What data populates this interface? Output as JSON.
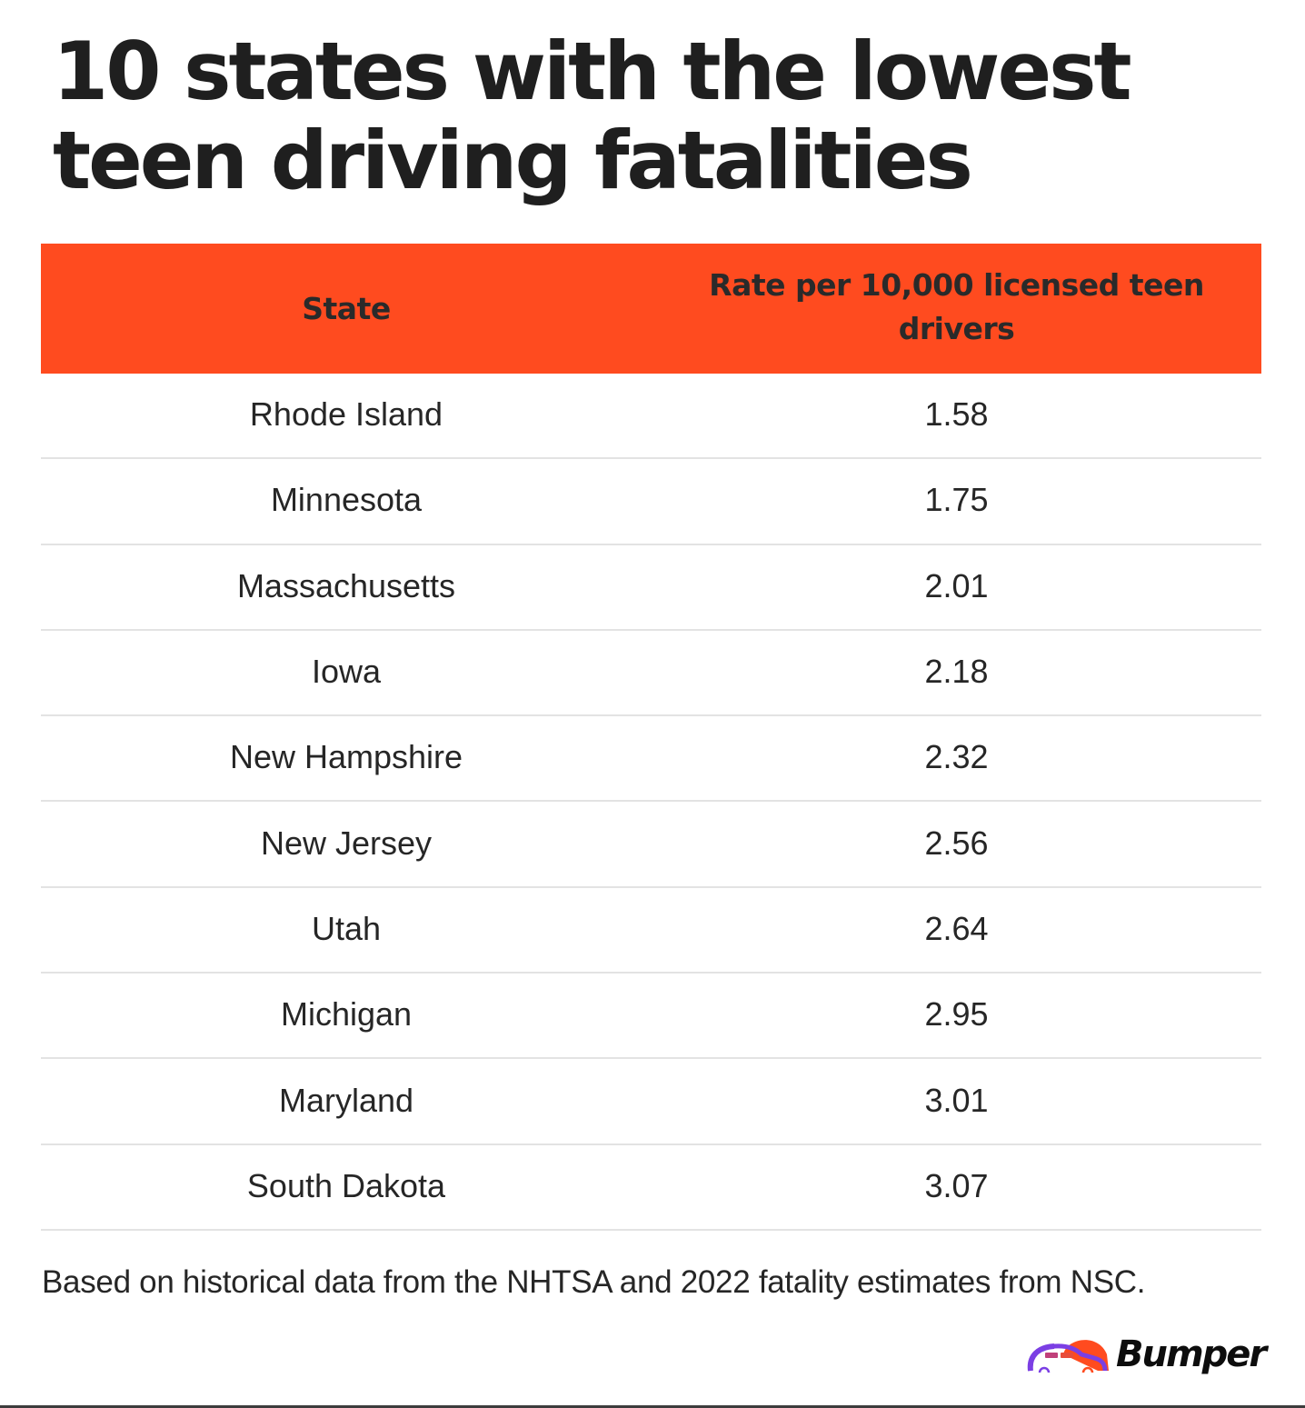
{
  "title": "10 states with the lowest teen driving fatalities",
  "table": {
    "columns": [
      "State",
      "Rate per 10,000 licensed teen drivers"
    ],
    "header_color": "#ff4b1f",
    "rows": [
      {
        "state": "Rhode Island",
        "rate": "1.58"
      },
      {
        "state": "Minnesota",
        "rate": "1.75"
      },
      {
        "state": "Massachusetts",
        "rate": "2.01"
      },
      {
        "state": "Iowa",
        "rate": "2.18"
      },
      {
        "state": "New Hampshire",
        "rate": "2.32"
      },
      {
        "state": "New Jersey",
        "rate": "2.56"
      },
      {
        "state": "Utah",
        "rate": "2.64"
      },
      {
        "state": "Michigan",
        "rate": "2.95"
      },
      {
        "state": "Maryland",
        "rate": "3.01"
      },
      {
        "state": "South Dakota",
        "rate": "3.07"
      }
    ]
  },
  "footnote": "Based on historical data from the NHTSA and 2022 fatality estimates from NSC.",
  "logo": {
    "text": "Bumper",
    "icon": "car-icon",
    "colors": {
      "primary": "#ff4b1f",
      "secondary": "#7b3fe4"
    }
  }
}
